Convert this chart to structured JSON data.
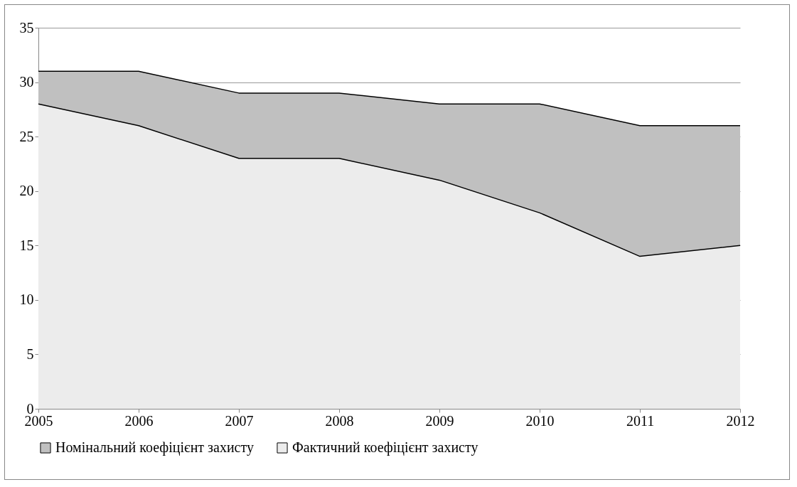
{
  "chart_data": {
    "type": "area",
    "x": [
      2005,
      2006,
      2007,
      2008,
      2009,
      2010,
      2011,
      2012
    ],
    "xlim": [
      2005,
      2012
    ],
    "xticks": [
      2005,
      2006,
      2007,
      2008,
      2009,
      2010,
      2011,
      2012
    ],
    "ylim": [
      0,
      35
    ],
    "yticks": [
      0,
      5,
      10,
      15,
      20,
      25,
      30,
      35
    ],
    "grid": "y",
    "legend": "bottom",
    "series": [
      {
        "name": "Номінальний коефіцієнт захисту",
        "color": "#c0c0c0",
        "values": [
          31,
          31,
          29,
          29,
          28,
          28,
          26,
          26
        ]
      },
      {
        "name": "Фактичний коефіцієнт захисту",
        "color": "#ececec",
        "values": [
          28,
          26,
          23,
          23,
          21,
          18,
          14,
          15
        ]
      }
    ]
  }
}
